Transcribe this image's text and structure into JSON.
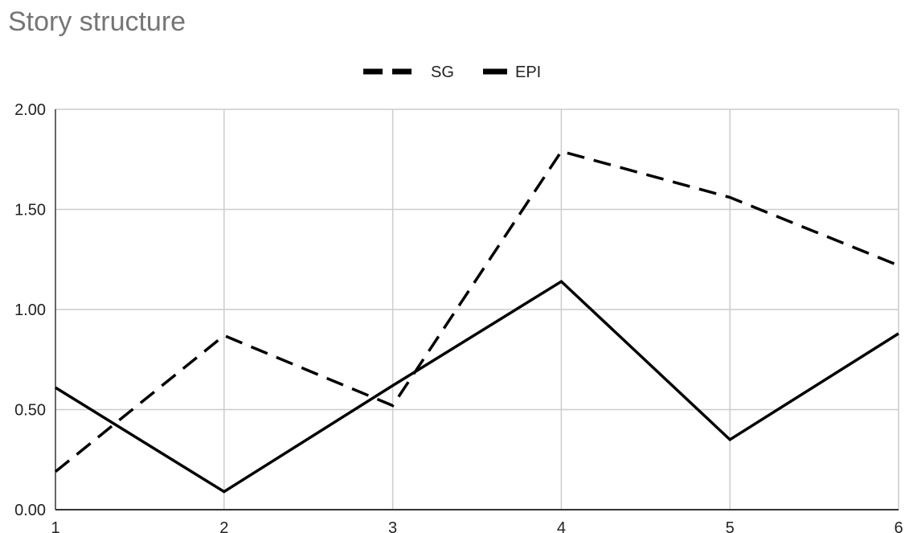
{
  "chart_data": {
    "type": "line",
    "title": "Story structure",
    "xlabel": "",
    "ylabel": "",
    "x": [
      1,
      2,
      3,
      4,
      5,
      6
    ],
    "xlim": [
      1,
      6
    ],
    "ylim": [
      0,
      2
    ],
    "y_ticks": [
      "0.00",
      "0.50",
      "1.00",
      "1.50",
      "2.00"
    ],
    "x_ticks": [
      "1",
      "2",
      "3",
      "4",
      "5",
      "6"
    ],
    "grid": true,
    "legend_position": "top",
    "series": [
      {
        "name": "SG",
        "style": "dashed",
        "color": "#000000",
        "values": [
          0.19,
          0.87,
          0.52,
          1.79,
          1.56,
          1.22
        ]
      },
      {
        "name": "EPI",
        "style": "solid",
        "color": "#000000",
        "values": [
          0.61,
          0.09,
          0.62,
          1.14,
          0.35,
          0.88
        ]
      }
    ]
  }
}
